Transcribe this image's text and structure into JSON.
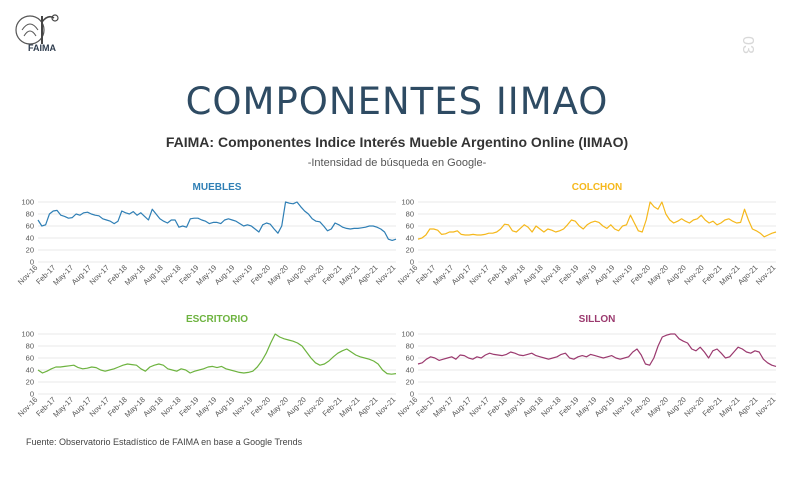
{
  "logo": {
    "text": "FAIMA"
  },
  "page_number": "03",
  "title": "COMPONENTES IIMAO",
  "chart_title": "FAIMA: Componentes Indice Interés Mueble Argentino Online (IIMAO)",
  "chart_subtitle": "-Intensidad de búsqueda en Google-",
  "source": "Fuente: Observatorio Estadístico de FAIMA en base a Google Trends",
  "chart_data": [
    {
      "type": "line",
      "title": "MUEBLES",
      "color": "#2f7fb5",
      "ylim": [
        0,
        100
      ],
      "yticks": [
        "0",
        "20",
        "40",
        "60",
        "80",
        "100"
      ],
      "x_labels": [
        "Nov-16",
        "Feb-17",
        "May-17",
        "Aug-17",
        "Nov-17",
        "Feb-18",
        "May-18",
        "Aug-18",
        "Nov-18",
        "Feb-19",
        "May-19",
        "Aug-19",
        "Nov-19",
        "Feb-20",
        "May-20",
        "Aug-20",
        "Nov-20",
        "Feb-21",
        "May-21",
        "Ago-21",
        "Nov-21"
      ],
      "x_range": [
        "Nov-16",
        "Nov-21"
      ],
      "values": [
        70,
        60,
        62,
        80,
        85,
        86,
        78,
        76,
        73,
        74,
        80,
        78,
        82,
        83,
        80,
        78,
        77,
        72,
        70,
        68,
        64,
        68,
        85,
        82,
        80,
        84,
        78,
        82,
        76,
        70,
        88,
        80,
        72,
        68,
        65,
        70,
        70,
        58,
        60,
        58,
        72,
        73,
        73,
        70,
        68,
        64,
        66,
        66,
        64,
        70,
        72,
        70,
        68,
        64,
        60,
        62,
        60,
        55,
        50,
        62,
        65,
        63,
        55,
        48,
        60,
        100,
        98,
        97,
        100,
        92,
        85,
        80,
        72,
        68,
        67,
        60,
        52,
        55,
        65,
        62,
        58,
        56,
        55,
        56,
        56,
        57,
        58,
        60,
        60,
        58,
        55,
        50,
        38,
        36,
        38
      ]
    },
    {
      "type": "line",
      "title": "COLCHON",
      "color": "#f5b81c",
      "ylim": [
        0,
        100
      ],
      "yticks": [
        "0",
        "20",
        "40",
        "60",
        "80",
        "100"
      ],
      "x_labels": [
        "Nov-16",
        "Feb-17",
        "May-17",
        "Aug-17",
        "Nov-17",
        "Feb-18",
        "May-18",
        "Aug-18",
        "Nov-18",
        "Feb-19",
        "May-19",
        "Aug-19",
        "Nov-19",
        "Feb-20",
        "May-20",
        "Aug-20",
        "Nov-20",
        "Feb-21",
        "May-21",
        "Ago-21",
        "Nov-21"
      ],
      "x_range": [
        "Nov-16",
        "Nov-21"
      ],
      "values": [
        38,
        40,
        45,
        55,
        55,
        53,
        46,
        47,
        50,
        50,
        52,
        46,
        45,
        45,
        46,
        45,
        45,
        46,
        48,
        48,
        50,
        55,
        63,
        62,
        52,
        50,
        56,
        62,
        58,
        50,
        60,
        55,
        50,
        55,
        53,
        50,
        52,
        55,
        62,
        70,
        68,
        60,
        55,
        62,
        66,
        68,
        66,
        60,
        56,
        62,
        55,
        52,
        60,
        62,
        78,
        65,
        52,
        50,
        70,
        100,
        92,
        88,
        100,
        80,
        70,
        65,
        68,
        72,
        68,
        65,
        70,
        72,
        78,
        70,
        65,
        68,
        62,
        65,
        70,
        72,
        68,
        65,
        66,
        88,
        70,
        55,
        52,
        48,
        42,
        45,
        48,
        50
      ]
    },
    {
      "type": "line",
      "title": "ESCRITORIO",
      "color": "#6db33f",
      "ylim": [
        0,
        100
      ],
      "yticks": [
        "0",
        "20",
        "40",
        "60",
        "80",
        "100"
      ],
      "x_labels": [
        "Nov-16",
        "Feb-17",
        "May-17",
        "Aug-17",
        "Nov-17",
        "Feb-18",
        "May-18",
        "Aug-18",
        "Nov-18",
        "Feb-19",
        "May-19",
        "Aug-19",
        "Nov-19",
        "Feb-20",
        "May-20",
        "Aug-20",
        "Nov-20",
        "Feb-21",
        "May-21",
        "Ago-21",
        "Nov-21"
      ],
      "x_range": [
        "Nov-16",
        "Nov-21"
      ],
      "values": [
        40,
        35,
        38,
        42,
        45,
        45,
        46,
        47,
        48,
        44,
        42,
        43,
        45,
        44,
        40,
        38,
        40,
        42,
        45,
        48,
        50,
        49,
        48,
        42,
        38,
        45,
        48,
        50,
        48,
        42,
        40,
        38,
        42,
        40,
        35,
        38,
        40,
        42,
        45,
        46,
        44,
        46,
        42,
        40,
        38,
        36,
        35,
        36,
        38,
        45,
        55,
        68,
        85,
        100,
        95,
        92,
        90,
        88,
        85,
        80,
        70,
        60,
        52,
        48,
        50,
        55,
        62,
        68,
        72,
        75,
        70,
        65,
        62,
        60,
        58,
        55,
        50,
        40,
        34,
        33,
        34
      ]
    },
    {
      "type": "line",
      "title": "SILLON",
      "color": "#9b3a6f",
      "ylim": [
        0,
        100
      ],
      "yticks": [
        "0",
        "20",
        "40",
        "60",
        "80",
        "100"
      ],
      "x_labels": [
        "Nov-16",
        "Feb-17",
        "May-17",
        "Aug-17",
        "Nov-17",
        "Feb-18",
        "May-18",
        "Aug-18",
        "Nov-18",
        "Feb-19",
        "May-19",
        "Aug-19",
        "Nov-19",
        "Feb-20",
        "May-20",
        "Aug-20",
        "Nov-20",
        "Feb-21",
        "May-21",
        "Ago-21",
        "Nov-21"
      ],
      "x_range": [
        "Nov-16",
        "Nov-21"
      ],
      "values": [
        50,
        52,
        58,
        62,
        60,
        56,
        58,
        60,
        62,
        58,
        65,
        64,
        60,
        58,
        62,
        60,
        65,
        68,
        66,
        65,
        64,
        66,
        70,
        68,
        65,
        64,
        66,
        68,
        64,
        62,
        60,
        58,
        60,
        62,
        66,
        68,
        60,
        58,
        62,
        64,
        62,
        66,
        64,
        62,
        60,
        62,
        64,
        60,
        58,
        60,
        62,
        70,
        75,
        65,
        50,
        48,
        60,
        80,
        95,
        98,
        100,
        100,
        92,
        88,
        85,
        75,
        72,
        78,
        70,
        60,
        72,
        75,
        68,
        60,
        62,
        70,
        78,
        75,
        70,
        68,
        72,
        70,
        58,
        52,
        48,
        46
      ]
    }
  ]
}
